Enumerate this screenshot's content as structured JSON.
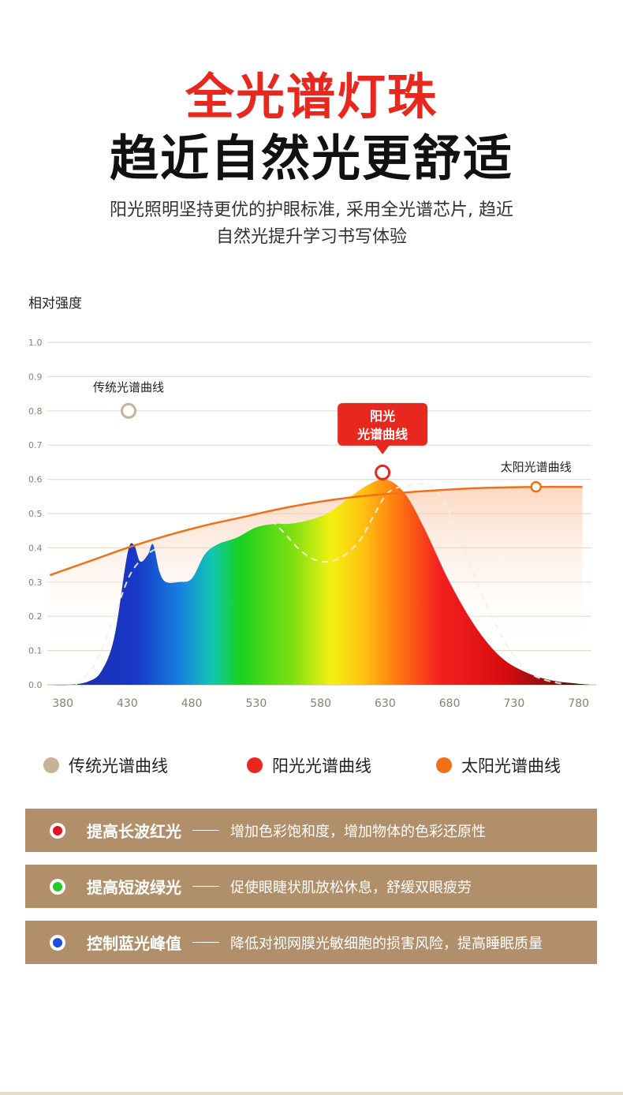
{
  "header": {
    "title_line1": "全光谱灯珠",
    "title_line2": "趋近自然光更舒适",
    "subtitle_line1": "阳光照明坚持更优的护眼标准, 采用全光谱芯片, 趋近",
    "subtitle_line2": "自然光提升学习书写体验"
  },
  "chart_data": {
    "type": "area",
    "title": "",
    "ylabel": "相对强度",
    "xlabel": "",
    "xlim": [
      368,
      790
    ],
    "ylim": [
      0,
      1.0
    ],
    "x_ticks": [
      380,
      430,
      480,
      530,
      580,
      630,
      680,
      730,
      780
    ],
    "y_ticks": [
      0.0,
      0.1,
      0.2,
      0.3,
      0.4,
      0.5,
      0.6,
      0.7,
      0.8,
      0.9,
      1.0
    ],
    "y_tick_labels": [
      "0.0",
      "0.1",
      "0.2",
      "0.3",
      "0.4",
      "0.5",
      "0.6",
      "0.7",
      "0.8",
      "0.9",
      "1.0"
    ],
    "grid": true,
    "series": [
      {
        "name": "阳光光谱曲线",
        "color": "#e8281e",
        "fill": "spectrum-gradient",
        "x": [
          370,
          385,
          400,
          410,
          420,
          430,
          435,
          440,
          446,
          450,
          455,
          460,
          470,
          480,
          490,
          500,
          515,
          530,
          545,
          555,
          570,
          585,
          600,
          615,
          630,
          645,
          660,
          680,
          700,
          720,
          740,
          760,
          780,
          790
        ],
        "y": [
          0.0,
          0.0,
          0.01,
          0.04,
          0.14,
          0.38,
          0.41,
          0.36,
          0.38,
          0.41,
          0.33,
          0.3,
          0.3,
          0.31,
          0.38,
          0.41,
          0.43,
          0.46,
          0.47,
          0.47,
          0.48,
          0.5,
          0.54,
          0.58,
          0.6,
          0.56,
          0.46,
          0.3,
          0.17,
          0.08,
          0.035,
          0.012,
          0.003,
          0.0
        ]
      },
      {
        "name": "太阳光谱曲线",
        "color": "#f07018",
        "x": [
          370,
          400,
          430,
          460,
          490,
          520,
          550,
          580,
          610,
          640,
          670,
          700,
          730,
          760,
          783
        ],
        "y": [
          0.32,
          0.36,
          0.4,
          0.435,
          0.465,
          0.49,
          0.515,
          0.535,
          0.55,
          0.56,
          0.568,
          0.574,
          0.577,
          0.578,
          0.578
        ]
      },
      {
        "name": "传统光谱曲线",
        "color": "#f4eee8",
        "style": "dashed",
        "x": [
          390,
          405,
          420,
          432,
          445,
          460,
          480,
          500,
          520,
          535,
          550,
          565,
          580,
          595,
          610,
          622,
          632,
          645,
          665,
          680,
          695,
          715,
          740,
          770
        ],
        "y": [
          0.0,
          0.06,
          0.2,
          0.32,
          0.38,
          0.41,
          0.45,
          0.48,
          0.5,
          0.5,
          0.45,
          0.39,
          0.36,
          0.37,
          0.42,
          0.5,
          0.56,
          0.58,
          0.58,
          0.5,
          0.36,
          0.18,
          0.04,
          0.0
        ]
      }
    ],
    "annotations": [
      {
        "text": "传统光谱曲线",
        "x": 431,
        "y": 0.8,
        "style": "label-above-circle",
        "color": "#c4b299"
      },
      {
        "text_line1": "阳光",
        "text_line2": "光谱曲线",
        "x": 628,
        "y": 0.62,
        "style": "red-callout",
        "color": "#e8281e"
      },
      {
        "text": "太阳光谱曲线",
        "x": 747,
        "y": 0.578,
        "style": "label-above-marker",
        "color": "#f07018"
      }
    ]
  },
  "legend": [
    {
      "label": "传统光谱曲线",
      "color": "#c4b299"
    },
    {
      "label": "阳光光谱曲线",
      "color": "#e8281e"
    },
    {
      "label": "太阳光谱曲线",
      "color": "#f07018"
    }
  ],
  "features": [
    {
      "title": "提高长波红光",
      "desc": "增加色彩饱和度，增加物体的色彩还原性",
      "icon": "red-dot-icon",
      "color": "#e8101a"
    },
    {
      "title": "提高短波绿光",
      "desc": "促使眼睫状肌放松休息，舒缓双眼疲劳",
      "icon": "green-dot-icon",
      "color": "#22cc22"
    },
    {
      "title": "控制蓝光峰值",
      "desc": "降低对视网膜光敏细胞的损害风险，提高睡眠质量",
      "icon": "blue-dot-icon",
      "color": "#1a4fe0"
    }
  ],
  "colors": {
    "title_red": "#e8281e",
    "feature_bg": "#b08f6a",
    "grid": "#e6dccd",
    "axis": "#d8ccbc"
  }
}
